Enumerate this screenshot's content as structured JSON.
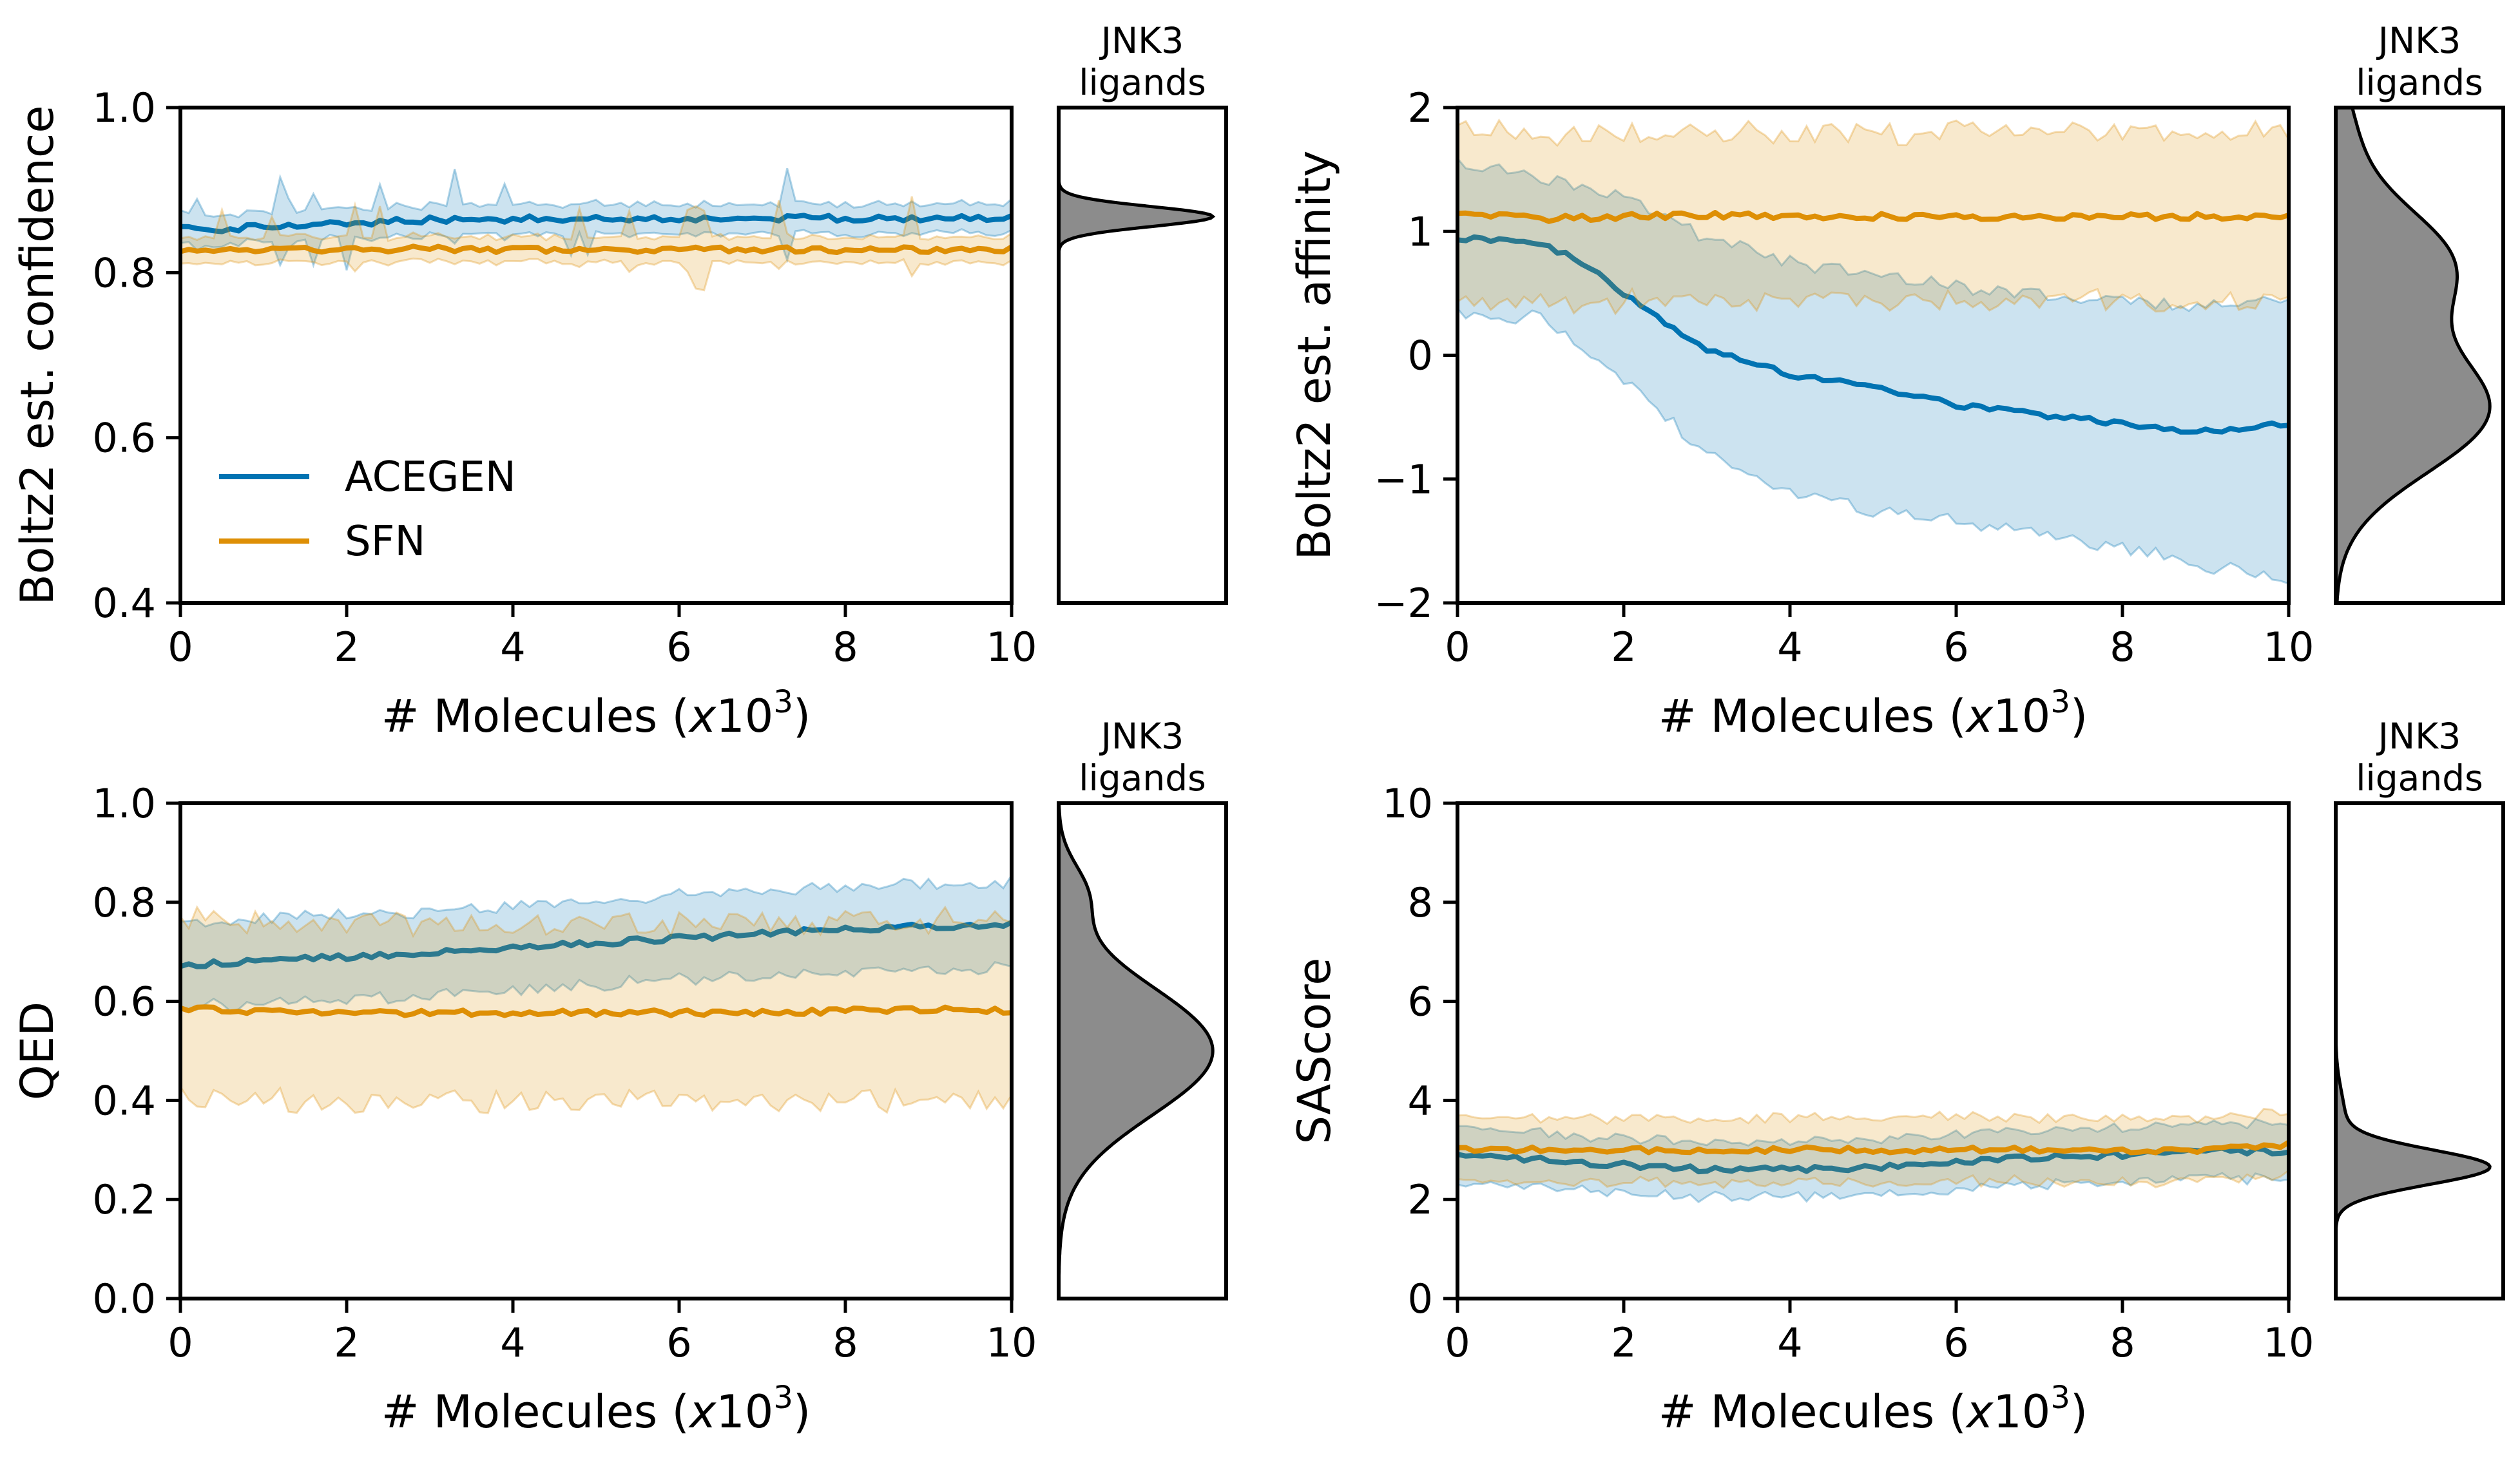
{
  "colors": {
    "ACEGEN": "#0173b2",
    "SFN": "#de8f05",
    "kde_fill": "#8c8c8c"
  },
  "legend": {
    "entries": [
      {
        "name": "ACEGEN"
      },
      {
        "name": "SFN"
      }
    ],
    "placement": "center-left"
  },
  "chart_data": [
    {
      "id": "confidence",
      "type": "line",
      "xlabel": "# Molecules (x10³)",
      "xlabel_main": "# Molecules (",
      "xlabel_var": "x",
      "xlabel_num": "10",
      "xlabel_sup": "3",
      "xlabel_close": ")",
      "ylabel": "Boltz2 est. confidence",
      "xlim": [
        0,
        10
      ],
      "ylim": [
        0.4,
        1.0
      ],
      "xticks": [
        "0",
        "2",
        "4",
        "6",
        "8",
        "10"
      ],
      "yticks": [
        "0.4",
        "0.6",
        "0.8",
        "1.0"
      ],
      "series": [
        {
          "name": "ACEGEN",
          "points": [
            [
              0,
              0.853
            ],
            [
              0.5,
              0.852
            ],
            [
              1,
              0.856
            ],
            [
              2,
              0.86
            ],
            [
              3,
              0.864
            ],
            [
              4,
              0.865
            ],
            [
              5,
              0.866
            ],
            [
              6,
              0.866
            ],
            [
              7,
              0.866
            ],
            [
              8,
              0.866
            ],
            [
              9,
              0.866
            ],
            [
              10,
              0.866
            ]
          ],
          "band_half": 0.018
        },
        {
          "name": "SFN",
          "points": [
            [
              0,
              0.828
            ],
            [
              1,
              0.828
            ],
            [
              2,
              0.828
            ],
            [
              3,
              0.829
            ],
            [
              4,
              0.827
            ],
            [
              5,
              0.828
            ],
            [
              6,
              0.828
            ],
            [
              7,
              0.828
            ],
            [
              8,
              0.828
            ],
            [
              9,
              0.828
            ],
            [
              10,
              0.828
            ]
          ],
          "band_half": 0.015
        }
      ],
      "marginal": {
        "title_line1": "JNK3",
        "title_line2": "ligands",
        "kde": [
          {
            "c": 0.868,
            "s": 0.012,
            "w": 1
          }
        ]
      }
    },
    {
      "id": "affinity",
      "type": "line",
      "xlabel": "# Molecules (x10³)",
      "xlabel_main": "# Molecules (",
      "xlabel_var": "x",
      "xlabel_num": "10",
      "xlabel_sup": "3",
      "xlabel_close": ")",
      "ylabel": "Boltz2 est. affinity",
      "xlim": [
        0,
        10
      ],
      "ylim": [
        -2,
        2
      ],
      "xticks": [
        "0",
        "2",
        "4",
        "6",
        "8",
        "10"
      ],
      "yticks": [
        "−2",
        "−1",
        "0",
        "1",
        "2"
      ],
      "series": [
        {
          "name": "ACEGEN",
          "points": [
            [
              0,
              0.95
            ],
            [
              0.5,
              0.93
            ],
            [
              1,
              0.9
            ],
            [
              1.5,
              0.75
            ],
            [
              2,
              0.5
            ],
            [
              2.5,
              0.25
            ],
            [
              3,
              0.05
            ],
            [
              3.5,
              -0.05
            ],
            [
              4,
              -0.15
            ],
            [
              5,
              -0.25
            ],
            [
              6,
              -0.4
            ],
            [
              7,
              -0.48
            ],
            [
              8,
              -0.55
            ],
            [
              9,
              -0.62
            ],
            [
              10,
              -0.55
            ]
          ],
          "band_upper": [
            [
              0,
              1.55
            ],
            [
              1,
              1.45
            ],
            [
              2,
              1.3
            ],
            [
              3,
              0.95
            ],
            [
              4,
              0.75
            ],
            [
              5,
              0.65
            ],
            [
              6,
              0.55
            ],
            [
              7,
              0.5
            ],
            [
              8,
              0.45
            ],
            [
              9,
              0.4
            ],
            [
              10,
              0.45
            ]
          ],
          "band_lower": [
            [
              0,
              0.35
            ],
            [
              1,
              0.3
            ],
            [
              2,
              -0.2
            ],
            [
              3,
              -0.8
            ],
            [
              4,
              -1.1
            ],
            [
              5,
              -1.25
            ],
            [
              6,
              -1.35
            ],
            [
              7,
              -1.45
            ],
            [
              8,
              -1.55
            ],
            [
              9,
              -1.7
            ],
            [
              10,
              -1.8
            ]
          ]
        },
        {
          "name": "SFN",
          "points": [
            [
              0,
              1.15
            ],
            [
              1,
              1.1
            ],
            [
              2,
              1.12
            ],
            [
              3,
              1.13
            ],
            [
              4,
              1.12
            ],
            [
              5,
              1.12
            ],
            [
              6,
              1.12
            ],
            [
              7,
              1.12
            ],
            [
              8,
              1.12
            ],
            [
              9,
              1.12
            ],
            [
              10,
              1.13
            ]
          ],
          "band_half": 0.68
        }
      ],
      "marginal": {
        "title_line1": "JNK3",
        "title_line2": "ligands",
        "kde": [
          {
            "c": 0.75,
            "s": 0.45,
            "w": 0.55
          },
          {
            "c": -0.45,
            "s": 0.5,
            "w": 0.75
          },
          {
            "c": 1.8,
            "s": 0.4,
            "w": 0.08
          }
        ]
      }
    },
    {
      "id": "qed",
      "type": "line",
      "xlabel": "# Molecules (x10³)",
      "xlabel_main": "# Molecules (",
      "xlabel_var": "x",
      "xlabel_num": "10",
      "xlabel_sup": "3",
      "xlabel_close": ")",
      "ylabel": "QED",
      "xlim": [
        0,
        10
      ],
      "ylim": [
        0.0,
        1.0
      ],
      "xticks": [
        "0",
        "2",
        "4",
        "6",
        "8",
        "10"
      ],
      "yticks": [
        "0.0",
        "0.2",
        "0.4",
        "0.6",
        "0.8",
        "1.0"
      ],
      "series": [
        {
          "name": "ACEGEN",
          "points": [
            [
              0,
              0.672
            ],
            [
              1,
              0.682
            ],
            [
              2,
              0.69
            ],
            [
              3,
              0.698
            ],
            [
              4,
              0.708
            ],
            [
              5,
              0.717
            ],
            [
              6,
              0.727
            ],
            [
              7,
              0.737
            ],
            [
              8,
              0.745
            ],
            [
              9,
              0.752
            ],
            [
              10,
              0.755
            ]
          ],
          "band_half": 0.085
        },
        {
          "name": "SFN",
          "points": [
            [
              0,
              0.585
            ],
            [
              1,
              0.578
            ],
            [
              2,
              0.577
            ],
            [
              3,
              0.577
            ],
            [
              4,
              0.577
            ],
            [
              5,
              0.577
            ],
            [
              6,
              0.577
            ],
            [
              7,
              0.577
            ],
            [
              8,
              0.58
            ],
            [
              9,
              0.585
            ],
            [
              10,
              0.58
            ]
          ],
          "band_half": 0.18
        }
      ],
      "marginal": {
        "title_line1": "JNK3",
        "title_line2": "ligands",
        "kde": [
          {
            "c": 0.5,
            "s": 0.13,
            "w": 1
          },
          {
            "c": 0.82,
            "s": 0.06,
            "w": 0.15
          }
        ]
      }
    },
    {
      "id": "sascore",
      "type": "line",
      "xlabel": "# Molecules (x10³)",
      "xlabel_main": "# Molecules (",
      "xlabel_var": "x",
      "xlabel_num": "10",
      "xlabel_sup": "3",
      "xlabel_close": ")",
      "ylabel": "SAScore",
      "xlim": [
        0,
        10
      ],
      "ylim": [
        0,
        10
      ],
      "xticks": [
        "0",
        "2",
        "4",
        "6",
        "8",
        "10"
      ],
      "yticks": [
        "0",
        "2",
        "4",
        "6",
        "8",
        "10"
      ],
      "series": [
        {
          "name": "ACEGEN",
          "points": [
            [
              0,
              2.9
            ],
            [
              1,
              2.8
            ],
            [
              2,
              2.7
            ],
            [
              3,
              2.6
            ],
            [
              4,
              2.6
            ],
            [
              5,
              2.65
            ],
            [
              6,
              2.75
            ],
            [
              7,
              2.85
            ],
            [
              8,
              2.9
            ],
            [
              9,
              3.0
            ],
            [
              10,
              2.95
            ]
          ],
          "band_half": 0.55
        },
        {
          "name": "SFN",
          "points": [
            [
              0,
              3.0
            ],
            [
              1,
              3.0
            ],
            [
              2,
              3.0
            ],
            [
              3,
              3.0
            ],
            [
              4,
              3.0
            ],
            [
              5,
              3.0
            ],
            [
              6,
              3.0
            ],
            [
              7,
              3.0
            ],
            [
              8,
              3.0
            ],
            [
              9,
              3.0
            ],
            [
              10,
              3.1
            ]
          ],
          "band_half": 0.65
        }
      ],
      "marginal": {
        "title_line1": "JNK3",
        "title_line2": "ligands",
        "kde": [
          {
            "c": 2.65,
            "s": 0.35,
            "w": 1
          },
          {
            "c": 3.6,
            "s": 0.6,
            "w": 0.06
          }
        ]
      }
    }
  ]
}
